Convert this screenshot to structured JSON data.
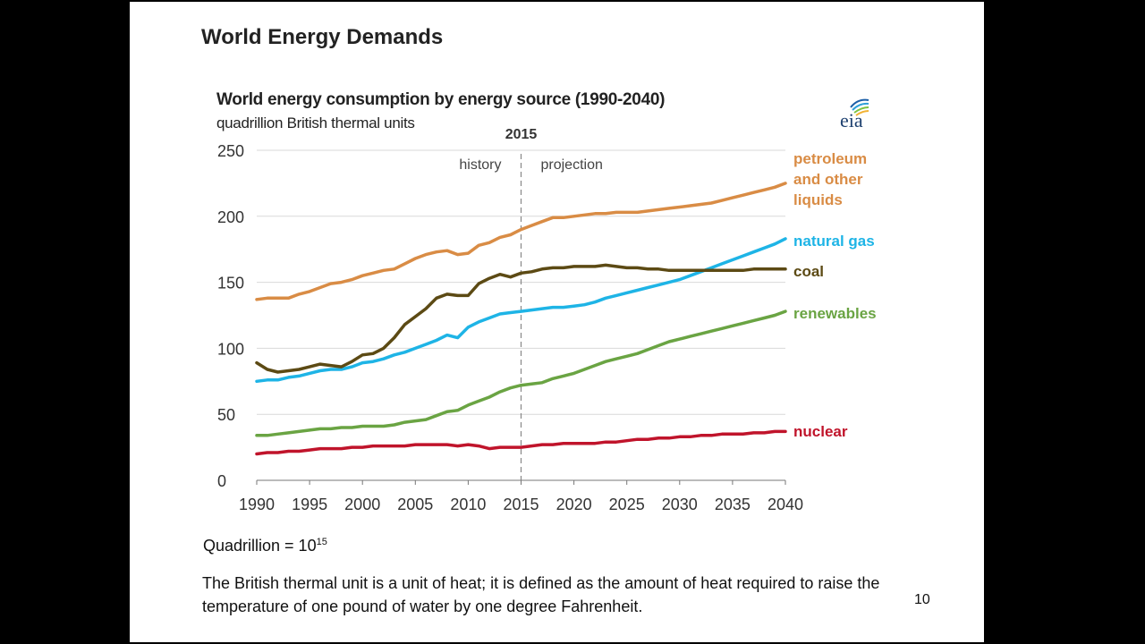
{
  "slide": {
    "title": "World Energy Demands",
    "quad_prefix": "Quadrillion = 10",
    "quad_exponent": "15",
    "btu_note": "The British thermal unit is a unit of heat; it is defined as the amount of heat required to raise the temperature of one pound of water by one degree Fahrenheit.",
    "page_number": "10"
  },
  "logo": {
    "text": "eia"
  },
  "chart_data": {
    "type": "line",
    "title": "World energy consumption by energy source (1990-2040)",
    "subtitle": "quadrillion British thermal units",
    "xlim": [
      1990,
      2040
    ],
    "ylim": [
      0,
      250
    ],
    "x_ticks": [
      1990,
      1995,
      2000,
      2005,
      2010,
      2015,
      2020,
      2025,
      2030,
      2035,
      2040
    ],
    "y_ticks": [
      0,
      50,
      100,
      150,
      200,
      250
    ],
    "grid": "horizontal",
    "divider": {
      "x": 2015,
      "label": "2015",
      "left_label": "history",
      "right_label": "projection"
    },
    "series": [
      {
        "name": "petroleum and other liquids",
        "label_lines": [
          "petroleum",
          "and other",
          "liquids"
        ],
        "color": "#d98c45",
        "points": [
          [
            1990,
            137
          ],
          [
            1991,
            138
          ],
          [
            1992,
            138
          ],
          [
            1993,
            138
          ],
          [
            1994,
            141
          ],
          [
            1995,
            143
          ],
          [
            1996,
            146
          ],
          [
            1997,
            149
          ],
          [
            1998,
            150
          ],
          [
            1999,
            152
          ],
          [
            2000,
            155
          ],
          [
            2001,
            157
          ],
          [
            2002,
            159
          ],
          [
            2003,
            160
          ],
          [
            2004,
            164
          ],
          [
            2005,
            168
          ],
          [
            2006,
            171
          ],
          [
            2007,
            173
          ],
          [
            2008,
            174
          ],
          [
            2009,
            171
          ],
          [
            2010,
            172
          ],
          [
            2011,
            178
          ],
          [
            2012,
            180
          ],
          [
            2013,
            184
          ],
          [
            2014,
            186
          ],
          [
            2015,
            190
          ],
          [
            2016,
            193
          ],
          [
            2017,
            196
          ],
          [
            2018,
            199
          ],
          [
            2019,
            199
          ],
          [
            2020,
            200
          ],
          [
            2021,
            201
          ],
          [
            2022,
            202
          ],
          [
            2023,
            202
          ],
          [
            2024,
            203
          ],
          [
            2025,
            203
          ],
          [
            2026,
            203
          ],
          [
            2027,
            204
          ],
          [
            2028,
            205
          ],
          [
            2029,
            206
          ],
          [
            2030,
            207
          ],
          [
            2031,
            208
          ],
          [
            2032,
            209
          ],
          [
            2033,
            210
          ],
          [
            2034,
            212
          ],
          [
            2035,
            214
          ],
          [
            2036,
            216
          ],
          [
            2037,
            218
          ],
          [
            2038,
            220
          ],
          [
            2039,
            222
          ],
          [
            2040,
            225
          ]
        ]
      },
      {
        "name": "natural gas",
        "label_lines": [
          "natural gas"
        ],
        "color": "#1eb4e6",
        "points": [
          [
            1990,
            75
          ],
          [
            1991,
            76
          ],
          [
            1992,
            76
          ],
          [
            1993,
            78
          ],
          [
            1994,
            79
          ],
          [
            1995,
            81
          ],
          [
            1996,
            83
          ],
          [
            1997,
            84
          ],
          [
            1998,
            84
          ],
          [
            1999,
            86
          ],
          [
            2000,
            89
          ],
          [
            2001,
            90
          ],
          [
            2002,
            92
          ],
          [
            2003,
            95
          ],
          [
            2004,
            97
          ],
          [
            2005,
            100
          ],
          [
            2006,
            103
          ],
          [
            2007,
            106
          ],
          [
            2008,
            110
          ],
          [
            2009,
            108
          ],
          [
            2010,
            116
          ],
          [
            2011,
            120
          ],
          [
            2012,
            123
          ],
          [
            2013,
            126
          ],
          [
            2014,
            127
          ],
          [
            2015,
            128
          ],
          [
            2016,
            129
          ],
          [
            2017,
            130
          ],
          [
            2018,
            131
          ],
          [
            2019,
            131
          ],
          [
            2020,
            132
          ],
          [
            2021,
            133
          ],
          [
            2022,
            135
          ],
          [
            2023,
            138
          ],
          [
            2024,
            140
          ],
          [
            2025,
            142
          ],
          [
            2026,
            144
          ],
          [
            2027,
            146
          ],
          [
            2028,
            148
          ],
          [
            2029,
            150
          ],
          [
            2030,
            152
          ],
          [
            2031,
            155
          ],
          [
            2032,
            158
          ],
          [
            2033,
            161
          ],
          [
            2034,
            164
          ],
          [
            2035,
            167
          ],
          [
            2036,
            170
          ],
          [
            2037,
            173
          ],
          [
            2038,
            176
          ],
          [
            2039,
            179
          ],
          [
            2040,
            183
          ]
        ]
      },
      {
        "name": "coal",
        "label_lines": [
          "coal"
        ],
        "color": "#5c4a14",
        "points": [
          [
            1990,
            89
          ],
          [
            1991,
            84
          ],
          [
            1992,
            82
          ],
          [
            1993,
            83
          ],
          [
            1994,
            84
          ],
          [
            1995,
            86
          ],
          [
            1996,
            88
          ],
          [
            1997,
            87
          ],
          [
            1998,
            86
          ],
          [
            1999,
            90
          ],
          [
            2000,
            95
          ],
          [
            2001,
            96
          ],
          [
            2002,
            100
          ],
          [
            2003,
            108
          ],
          [
            2004,
            118
          ],
          [
            2005,
            124
          ],
          [
            2006,
            130
          ],
          [
            2007,
            138
          ],
          [
            2008,
            141
          ],
          [
            2009,
            140
          ],
          [
            2010,
            140
          ],
          [
            2011,
            149
          ],
          [
            2012,
            153
          ],
          [
            2013,
            156
          ],
          [
            2014,
            154
          ],
          [
            2015,
            157
          ],
          [
            2016,
            158
          ],
          [
            2017,
            160
          ],
          [
            2018,
            161
          ],
          [
            2019,
            161
          ],
          [
            2020,
            162
          ],
          [
            2021,
            162
          ],
          [
            2022,
            162
          ],
          [
            2023,
            163
          ],
          [
            2024,
            162
          ],
          [
            2025,
            161
          ],
          [
            2026,
            161
          ],
          [
            2027,
            160
          ],
          [
            2028,
            160
          ],
          [
            2029,
            159
          ],
          [
            2030,
            159
          ],
          [
            2031,
            159
          ],
          [
            2032,
            159
          ],
          [
            2033,
            159
          ],
          [
            2034,
            159
          ],
          [
            2035,
            159
          ],
          [
            2036,
            159
          ],
          [
            2037,
            160
          ],
          [
            2038,
            160
          ],
          [
            2039,
            160
          ],
          [
            2040,
            160
          ]
        ]
      },
      {
        "name": "renewables",
        "label_lines": [
          "renewables"
        ],
        "color": "#6aa443",
        "points": [
          [
            1990,
            34
          ],
          [
            1991,
            34
          ],
          [
            1992,
            35
          ],
          [
            1993,
            36
          ],
          [
            1994,
            37
          ],
          [
            1995,
            38
          ],
          [
            1996,
            39
          ],
          [
            1997,
            39
          ],
          [
            1998,
            40
          ],
          [
            1999,
            40
          ],
          [
            2000,
            41
          ],
          [
            2001,
            41
          ],
          [
            2002,
            41
          ],
          [
            2003,
            42
          ],
          [
            2004,
            44
          ],
          [
            2005,
            45
          ],
          [
            2006,
            46
          ],
          [
            2007,
            49
          ],
          [
            2008,
            52
          ],
          [
            2009,
            53
          ],
          [
            2010,
            57
          ],
          [
            2011,
            60
          ],
          [
            2012,
            63
          ],
          [
            2013,
            67
          ],
          [
            2014,
            70
          ],
          [
            2015,
            72
          ],
          [
            2016,
            73
          ],
          [
            2017,
            74
          ],
          [
            2018,
            77
          ],
          [
            2019,
            79
          ],
          [
            2020,
            81
          ],
          [
            2021,
            84
          ],
          [
            2022,
            87
          ],
          [
            2023,
            90
          ],
          [
            2024,
            92
          ],
          [
            2025,
            94
          ],
          [
            2026,
            96
          ],
          [
            2027,
            99
          ],
          [
            2028,
            102
          ],
          [
            2029,
            105
          ],
          [
            2030,
            107
          ],
          [
            2031,
            109
          ],
          [
            2032,
            111
          ],
          [
            2033,
            113
          ],
          [
            2034,
            115
          ],
          [
            2035,
            117
          ],
          [
            2036,
            119
          ],
          [
            2037,
            121
          ],
          [
            2038,
            123
          ],
          [
            2039,
            125
          ],
          [
            2040,
            128
          ]
        ]
      },
      {
        "name": "nuclear",
        "label_lines": [
          "nuclear"
        ],
        "color": "#c0142b",
        "points": [
          [
            1990,
            20
          ],
          [
            1991,
            21
          ],
          [
            1992,
            21
          ],
          [
            1993,
            22
          ],
          [
            1994,
            22
          ],
          [
            1995,
            23
          ],
          [
            1996,
            24
          ],
          [
            1997,
            24
          ],
          [
            1998,
            24
          ],
          [
            1999,
            25
          ],
          [
            2000,
            25
          ],
          [
            2001,
            26
          ],
          [
            2002,
            26
          ],
          [
            2003,
            26
          ],
          [
            2004,
            26
          ],
          [
            2005,
            27
          ],
          [
            2006,
            27
          ],
          [
            2007,
            27
          ],
          [
            2008,
            27
          ],
          [
            2009,
            26
          ],
          [
            2010,
            27
          ],
          [
            2011,
            26
          ],
          [
            2012,
            24
          ],
          [
            2013,
            25
          ],
          [
            2014,
            25
          ],
          [
            2015,
            25
          ],
          [
            2016,
            26
          ],
          [
            2017,
            27
          ],
          [
            2018,
            27
          ],
          [
            2019,
            28
          ],
          [
            2020,
            28
          ],
          [
            2021,
            28
          ],
          [
            2022,
            28
          ],
          [
            2023,
            29
          ],
          [
            2024,
            29
          ],
          [
            2025,
            30
          ],
          [
            2026,
            31
          ],
          [
            2027,
            31
          ],
          [
            2028,
            32
          ],
          [
            2029,
            32
          ],
          [
            2030,
            33
          ],
          [
            2031,
            33
          ],
          [
            2032,
            34
          ],
          [
            2033,
            34
          ],
          [
            2034,
            35
          ],
          [
            2035,
            35
          ],
          [
            2036,
            35
          ],
          [
            2037,
            36
          ],
          [
            2038,
            36
          ],
          [
            2039,
            37
          ],
          [
            2040,
            37
          ]
        ]
      }
    ]
  }
}
